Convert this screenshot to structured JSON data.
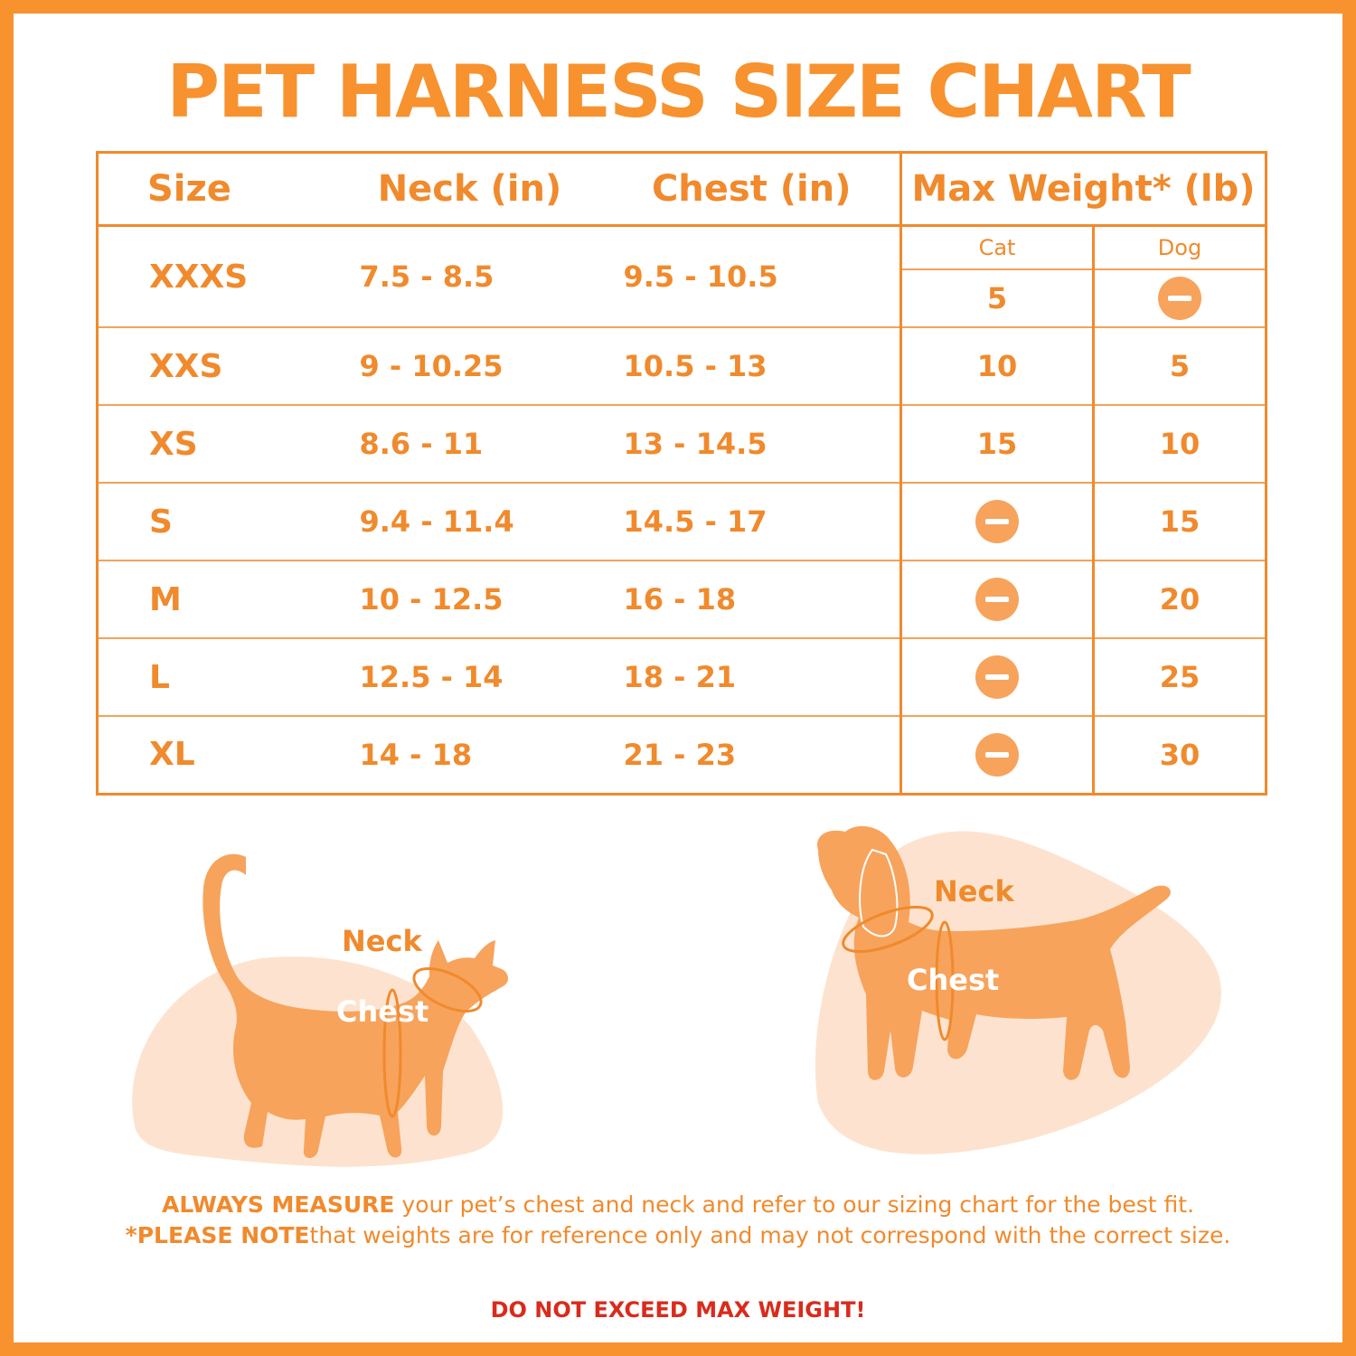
{
  "title": "PET HARNESS SIZE CHART",
  "table": {
    "headers": {
      "size": "Size",
      "neck": "Neck (in)",
      "chest": "Chest (in)",
      "max_weight": "Max Weight* (lb)",
      "cat": "Cat",
      "dog": "Dog"
    },
    "rows": [
      {
        "size": "XXXS",
        "neck": "7.5 - 8.5",
        "chest": "9.5 - 10.5",
        "cat": "5",
        "dog": null
      },
      {
        "size": "XXS",
        "neck": "9 - 10.25",
        "chest": "10.5 - 13",
        "cat": "10",
        "dog": "5"
      },
      {
        "size": "XS",
        "neck": "8.6 - 11",
        "chest": "13 - 14.5",
        "cat": "15",
        "dog": "10"
      },
      {
        "size": "S",
        "neck": "9.4 - 11.4",
        "chest": "14.5 - 17",
        "cat": null,
        "dog": "15"
      },
      {
        "size": "M",
        "neck": "10 - 12.5",
        "chest": "16 - 18",
        "cat": null,
        "dog": "20"
      },
      {
        "size": "L",
        "neck": "12.5 - 14",
        "chest": "18 - 21",
        "cat": null,
        "dog": "25"
      },
      {
        "size": "XL",
        "neck": "14 - 18",
        "chest": "21 - 23",
        "cat": null,
        "dog": "30"
      }
    ],
    "not_applicable_icon": "minus-circle-icon"
  },
  "illustrations": {
    "cat": {
      "neck_label": "Neck",
      "chest_label": "Chest"
    },
    "dog": {
      "neck_label": "Neck",
      "chest_label": "Chest"
    }
  },
  "footer": {
    "line1_strong": "ALWAYS MEASURE",
    "line1_rest": " your pet’s chest and neck and refer to our sizing chart for the best fit.",
    "line2_strong": "*PLEASE NOTE",
    "line2_rest": "that weights are for reference only and may not correspond with the correct size.",
    "warning": "DO NOT EXCEED MAX WEIGHT!"
  },
  "colors": {
    "accent": "#f7922f",
    "light_shape": "#fde3cf",
    "silhouette": "#f7a35c",
    "warning": "#d92b1c"
  }
}
